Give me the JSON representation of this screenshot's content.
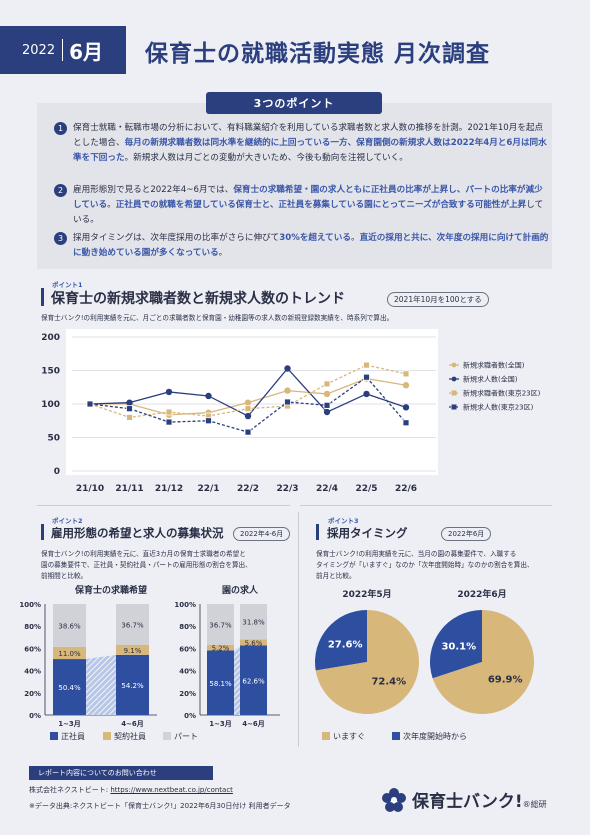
{
  "header": {
    "year": "2022",
    "month": "6月",
    "title": "保育士の就職活動実態 月次調査"
  },
  "points": {
    "tab": "3つのポイント",
    "items": [
      {
        "num": "1",
        "parts": [
          {
            "t": "保育士就職・転職市場の分析において、有料職業紹介を利用している求職者数と求人数の推移を計測。2021年10月を起点とした場合、",
            "h": false
          },
          {
            "t": "毎月の新規求職者数は同水準を継続的に上回っている一方、保育園側の新規求人数は2022年4月と6月は同水準を下回った",
            "h": true
          },
          {
            "t": "。新規求人数は月ごとの変動が大きいため、今後も動向を注視していく。",
            "h": false
          }
        ]
      },
      {
        "num": "2",
        "parts": [
          {
            "t": "雇用形態別で見ると2022年4~6月では、",
            "h": false
          },
          {
            "t": "保育士の求職希望・園の求人ともに正社員の比率が上昇し、パートの比率が減少している",
            "h": true
          },
          {
            "t": "。",
            "h": false
          },
          {
            "t": "正社員での就職を希望している保育士と、正社員を募集している園にとってニーズが合致する可能性が上昇",
            "h": true
          },
          {
            "t": "している。",
            "h": false
          }
        ]
      },
      {
        "num": "3",
        "parts": [
          {
            "t": "採用タイミングは、次年度採用の比率がさらに伸びて",
            "h": false
          },
          {
            "t": "30%を超えている",
            "h": true
          },
          {
            "t": "。",
            "h": false
          },
          {
            "t": "直近の採用と共に、次年度の採用に向けて計画的に動き始めている園が多くなっている",
            "h": true
          },
          {
            "t": "。",
            "h": false
          }
        ]
      }
    ]
  },
  "section1": {
    "tag": "ポイント1",
    "title": "保育士の新規求職者数と新規求人数のトレンド",
    "pill": "2021年10月を100とする",
    "note": "保育士バンク!の利用実績を元に、月ごとの求職者数と保育園・幼稚園等の求人数の新規登録数実績を、時系列で算出。"
  },
  "section2": {
    "tag": "ポイント2",
    "title": "雇用形態の希望と求人の募集状況",
    "pill": "2022年4-6月",
    "note": [
      "保育士バンク!の利用実績を元に、直近3カ月の保育士求職者の希望と",
      "園の募集要件で、正社員・契約社員・パートの雇用形態の割合を算出、",
      "前期間と比較。"
    ]
  },
  "section3": {
    "tag": "ポイント3",
    "title": "採用タイミング",
    "pill": "2022年6月",
    "note": [
      "保育士バンク!の利用実績を元に、当月の園の募集要件で、入職する",
      "タイミングが「いますぐ」なのか「次年度開始時」なのかの割合を算出、",
      "前月と比較。"
    ]
  },
  "chart_data": [
    {
      "type": "line",
      "categories": [
        "21/10",
        "21/11",
        "21/12",
        "22/1",
        "22/2",
        "22/3",
        "22/4",
        "22/5",
        "22/6"
      ],
      "ylim": [
        0,
        200
      ],
      "yticks": [
        "0",
        "50",
        "100",
        "150",
        "200"
      ],
      "series": [
        {
          "name": "新規求職者数(全国)",
          "values": [
            100,
            100,
            84,
            87,
            102,
            120,
            115,
            138,
            128
          ],
          "color": "#d8b77a",
          "dash": false,
          "marker": "circle"
        },
        {
          "name": "新規求人数(全国)",
          "values": [
            100,
            102,
            118,
            112,
            82,
            153,
            88,
            115,
            95
          ],
          "color": "#2b3f7e",
          "dash": false,
          "marker": "circle"
        },
        {
          "name": "新規求職者数(東京23区)",
          "values": [
            100,
            80,
            88,
            82,
            93,
            97,
            130,
            158,
            145
          ],
          "color": "#d8b77a",
          "dash": true,
          "marker": "square"
        },
        {
          "name": "新規求人数(東京23区)",
          "values": [
            100,
            93,
            73,
            75,
            58,
            103,
            98,
            140,
            72
          ],
          "color": "#2b3f7e",
          "dash": true,
          "marker": "square"
        }
      ]
    },
    {
      "type": "bar",
      "stacked": true,
      "groups": [
        {
          "title": "保育士の求職希望",
          "categories": [
            "1~3月",
            "4~6月"
          ],
          "series": [
            {
              "name": "正社員",
              "values": [
                50.4,
                54.2
              ],
              "labels": [
                "50.4%",
                "54.2%"
              ]
            },
            {
              "name": "契約社員",
              "values": [
                11.0,
                9.1
              ],
              "labels": [
                "11.0%",
                "9.1%"
              ]
            },
            {
              "name": "パート",
              "values": [
                38.6,
                36.7
              ],
              "labels": [
                "38.6%",
                "36.7%"
              ]
            }
          ]
        },
        {
          "title": "園の求人",
          "categories": [
            "1~3月",
            "4~6月"
          ],
          "series": [
            {
              "name": "正社員",
              "values": [
                58.1,
                62.6
              ],
              "labels": [
                "58.1%",
                "62.6%"
              ]
            },
            {
              "name": "契約社員",
              "values": [
                5.2,
                5.6
              ],
              "labels": [
                "5.2%",
                "5.6%"
              ]
            },
            {
              "name": "パート",
              "values": [
                36.7,
                31.8
              ],
              "labels": [
                "36.7%",
                "31.8%"
              ]
            }
          ]
        }
      ],
      "yticks": [
        "0%",
        "20%",
        "40%",
        "60%",
        "80%",
        "100%"
      ],
      "legend": [
        "正社員",
        "契約社員",
        "パート"
      ],
      "colors": [
        "#2e4fa0",
        "#d8b77a",
        "#d0d2d8"
      ]
    },
    {
      "type": "pie",
      "pies": [
        {
          "title": "2022年5月",
          "slices": [
            {
              "name": "いますぐ",
              "value": 72.4,
              "label": "72.4%"
            },
            {
              "name": "次年度開始時から",
              "value": 27.6,
              "label": "27.6%"
            }
          ]
        },
        {
          "title": "2022年6月",
          "slices": [
            {
              "name": "いますぐ",
              "value": 69.9,
              "label": "69.9%"
            },
            {
              "name": "次年度開始時から",
              "value": 30.1,
              "label": "30.1%"
            }
          ]
        }
      ],
      "legend": [
        "いますぐ",
        "次年度開始時から"
      ],
      "colors": [
        "#d8b77a",
        "#2e4fa0"
      ]
    }
  ],
  "footer": {
    "contact_tab": "レポート内容についてのお問い合わせ",
    "company": "株式会社ネクストビート: ",
    "url": "https://www.nextbeat.co.jp/contact",
    "source": "※データ出典:ネクストビート「保育士バンク!」2022年6月30日付け 利用者データ",
    "logo": "保育士バンク!",
    "logo_reg": "®",
    "logo_sub": "総研"
  }
}
